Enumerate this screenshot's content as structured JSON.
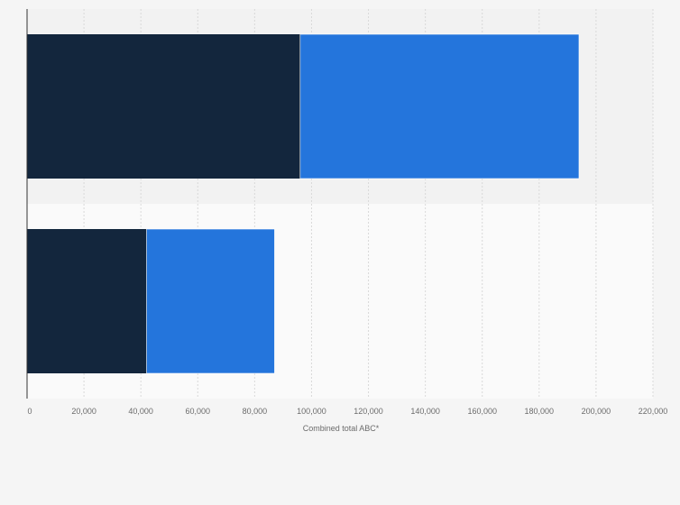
{
  "chart_data": {
    "type": "bar",
    "orientation": "horizontal",
    "stacked": true,
    "categories": [
      "",
      ""
    ],
    "series": [
      {
        "color": "#13263d",
        "values": [
          96000,
          42000
        ]
      },
      {
        "color": "#2475dc",
        "values": [
          98000,
          45000
        ]
      }
    ],
    "xlabel": "Combined total ABC*",
    "ylabel": "",
    "xlim": [
      0,
      220000
    ],
    "xticks": [
      0,
      20000,
      40000,
      60000,
      80000,
      100000,
      120000,
      140000,
      160000,
      180000,
      200000,
      220000
    ],
    "xtick_labels": [
      "0",
      "20,000",
      "40,000",
      "60,000",
      "80,000",
      "100,000",
      "120,000",
      "140,000",
      "160,000",
      "180,000",
      "200,000",
      "220,000"
    ],
    "grid": true,
    "legend": "none",
    "colors": {
      "background": "#f5f5f5",
      "plot_band_odd": "#f2f2f2",
      "plot_band_even": "#fafafa",
      "gridline": "#d9d9d9",
      "axis": "#333333"
    }
  }
}
